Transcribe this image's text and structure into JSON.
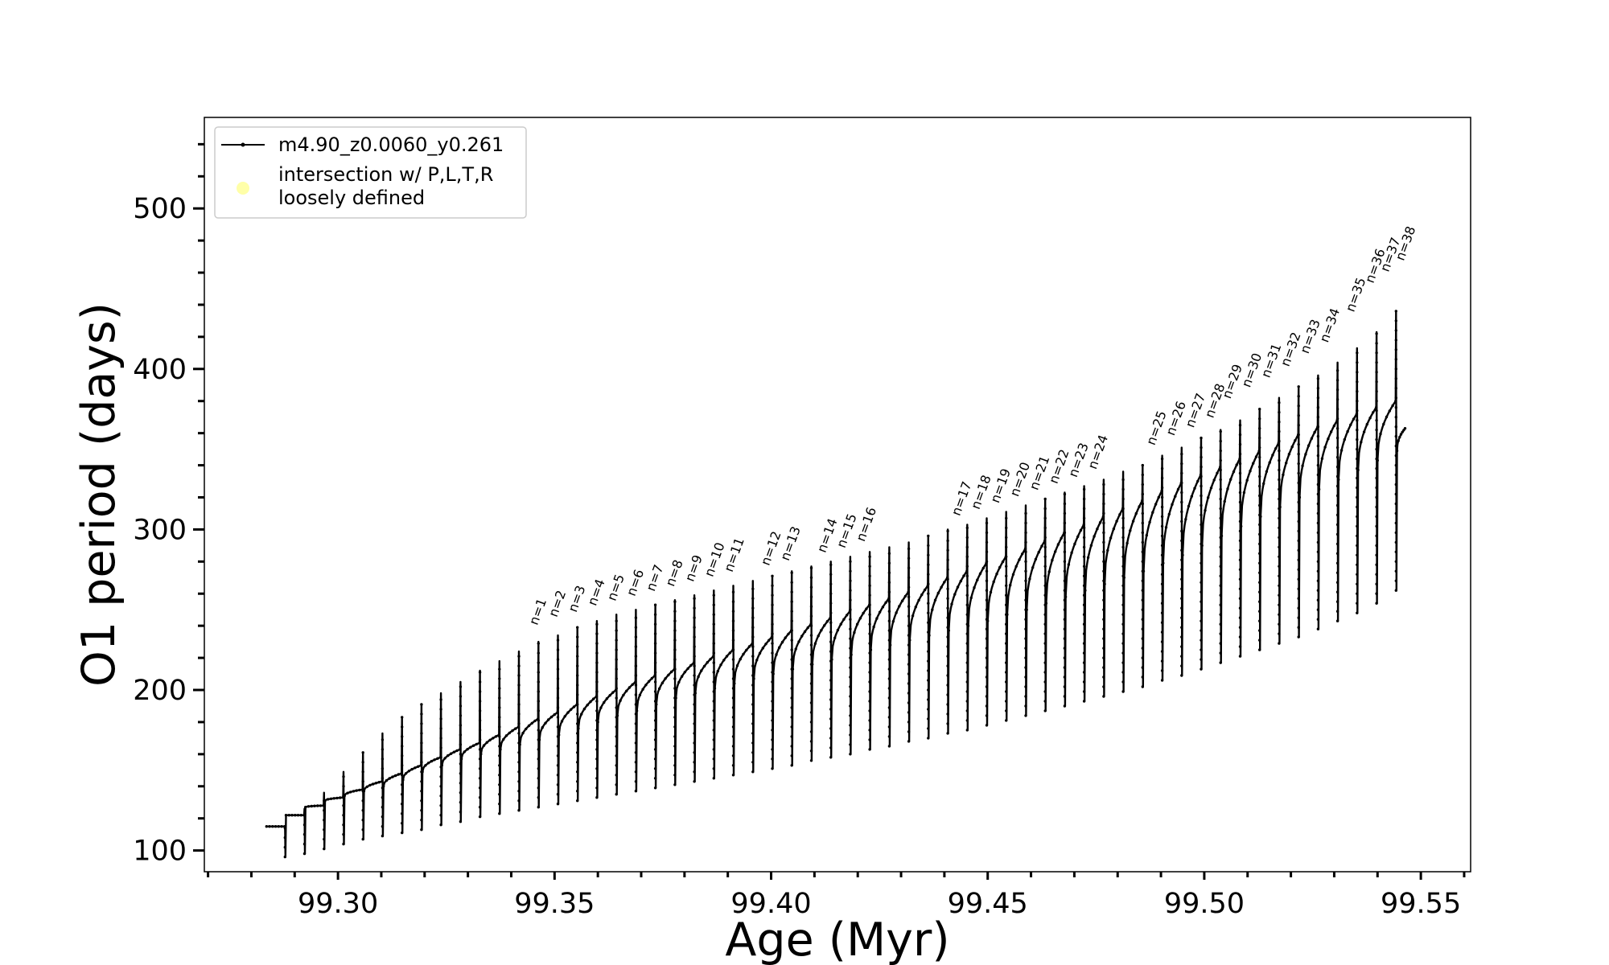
{
  "chart_data": {
    "type": "line",
    "title": "",
    "xlabel": "Age (Myr)",
    "ylabel": "O1 period (days)",
    "xlim": [
      99.27,
      99.56
    ],
    "ylim": [
      85,
      555
    ],
    "xticks": [
      99.3,
      99.35,
      99.4,
      99.45,
      99.5,
      99.55
    ],
    "xtick_labels": [
      "99.30",
      "99.35",
      "99.40",
      "99.45",
      "99.50",
      "99.55"
    ],
    "yticks": [
      100,
      200,
      300,
      400,
      500
    ],
    "ytick_labels": [
      "100",
      "200",
      "300",
      "400",
      "500"
    ],
    "grid": false,
    "legend_position": "top-left",
    "legend": [
      {
        "label": "m4.90_z0.0060_y0.261",
        "color": "#000000",
        "marker": "line-with-dots"
      },
      {
        "label_lines": [
          "intersection w/ P,L,T,R",
          "loosely defined"
        ],
        "color": "#ffffa8",
        "marker": "circle"
      }
    ],
    "series": [
      {
        "name": "m4.90_z0.0060_y0.261",
        "color": "#000000",
        "start_age": 99.2835,
        "end_age": 99.5465,
        "cycle_starts": [
          99.2835,
          99.288,
          99.2925,
          99.297,
          99.3015,
          99.306,
          99.3105,
          99.315,
          99.3195,
          99.324,
          99.3285,
          99.333,
          99.3375,
          99.342,
          99.3465,
          99.351,
          99.3555,
          99.36,
          99.3645,
          99.369,
          99.3735,
          99.378,
          99.3825,
          99.387,
          99.3915,
          99.396,
          99.4005,
          99.405,
          99.4095,
          99.414,
          99.4185,
          99.423,
          99.4275,
          99.432,
          99.4365,
          99.441,
          99.4455,
          99.45,
          99.4545,
          99.459,
          99.4635,
          99.468,
          99.4725,
          99.477,
          99.4815,
          99.486,
          99.4905,
          99.495,
          99.4995,
          99.504,
          99.5085,
          99.513,
          99.5175,
          99.522,
          99.5265,
          99.531,
          99.5355,
          99.54,
          99.5445
        ],
        "baseline": [
          115,
          122,
          127,
          131,
          134,
          137,
          140,
          144,
          149,
          153,
          157,
          160,
          163,
          166,
          169,
          172,
          176,
          180,
          184,
          187,
          191,
          195,
          198,
          201,
          204,
          207,
          210,
          213,
          216,
          219,
          222,
          225,
          228,
          231,
          234,
          237,
          240,
          243,
          247,
          250,
          254,
          258,
          262,
          266,
          270,
          274,
          279,
          284,
          290,
          296,
          302,
          308,
          314,
          320,
          325,
          331,
          337,
          343,
          349
        ],
        "peaks": [
          115,
          122,
          128,
          133,
          138,
          143,
          148,
          153,
          158,
          163,
          167,
          172,
          177,
          182,
          186,
          191,
          196,
          200,
          205,
          209,
          213,
          217,
          221,
          225,
          229,
          233,
          237,
          241,
          245,
          249,
          253,
          257,
          261,
          265,
          270,
          274,
          279,
          283,
          288,
          293,
          298,
          303,
          308,
          313,
          318,
          324,
          329,
          334,
          339,
          344,
          349,
          354,
          359,
          364,
          368,
          372,
          376,
          380,
          363
        ],
        "spikes": [
          115,
          126,
          136,
          149,
          161,
          173,
          183,
          191,
          198,
          205,
          212,
          218,
          224,
          230,
          234,
          239,
          243,
          247,
          250,
          253,
          256,
          259,
          262,
          265,
          268,
          271,
          274,
          277,
          280,
          283,
          286,
          289,
          292,
          296,
          300,
          303,
          307,
          311,
          315,
          319,
          323,
          327,
          331,
          336,
          340,
          346,
          351,
          357,
          362,
          368,
          375,
          382,
          389,
          396,
          404,
          413,
          423,
          436,
          452
        ],
        "dips": [
          96,
          98,
          101,
          104,
          107,
          109,
          111,
          113,
          116,
          118,
          121,
          123,
          125,
          127,
          129,
          131,
          133,
          135,
          137,
          139,
          141,
          143,
          145,
          147,
          149,
          151,
          153,
          156,
          158,
          160,
          163,
          165,
          168,
          170,
          173,
          175,
          178,
          181,
          184,
          187,
          190,
          193,
          196,
          199,
          202,
          206,
          209,
          213,
          217,
          221,
          225,
          229,
          233,
          238,
          243,
          248,
          254,
          262,
          272
        ]
      }
    ],
    "annotations": [
      {
        "text": "n=1",
        "x": 99.346,
        "y": 240
      },
      {
        "text": "n=2",
        "x": 99.3505,
        "y": 245
      },
      {
        "text": "n=3",
        "x": 99.355,
        "y": 248
      },
      {
        "text": "n=4",
        "x": 99.3595,
        "y": 252
      },
      {
        "text": "n=5",
        "x": 99.364,
        "y": 255
      },
      {
        "text": "n=6",
        "x": 99.3685,
        "y": 258
      },
      {
        "text": "n=7",
        "x": 99.373,
        "y": 261
      },
      {
        "text": "n=8",
        "x": 99.3775,
        "y": 264
      },
      {
        "text": "n=9",
        "x": 99.382,
        "y": 267
      },
      {
        "text": "n=10",
        "x": 99.3865,
        "y": 270
      },
      {
        "text": "n=11",
        "x": 99.391,
        "y": 273
      },
      {
        "text": "n=12",
        "x": 99.3995,
        "y": 277
      },
      {
        "text": "n=13",
        "x": 99.404,
        "y": 280
      },
      {
        "text": "n=14",
        "x": 99.4125,
        "y": 285
      },
      {
        "text": "n=15",
        "x": 99.417,
        "y": 288
      },
      {
        "text": "n=16",
        "x": 99.4215,
        "y": 292
      },
      {
        "text": "n=17",
        "x": 99.4435,
        "y": 308
      },
      {
        "text": "n=18",
        "x": 99.448,
        "y": 312
      },
      {
        "text": "n=19",
        "x": 99.4525,
        "y": 316
      },
      {
        "text": "n=20",
        "x": 99.457,
        "y": 320
      },
      {
        "text": "n=21",
        "x": 99.4615,
        "y": 324
      },
      {
        "text": "n=22",
        "x": 99.466,
        "y": 328
      },
      {
        "text": "n=23",
        "x": 99.4705,
        "y": 332
      },
      {
        "text": "n=24",
        "x": 99.475,
        "y": 337
      },
      {
        "text": "n=25",
        "x": 99.4885,
        "y": 352
      },
      {
        "text": "n=26",
        "x": 99.493,
        "y": 358
      },
      {
        "text": "n=27",
        "x": 99.4975,
        "y": 363
      },
      {
        "text": "n=28",
        "x": 99.502,
        "y": 369
      },
      {
        "text": "n=29",
        "x": 99.506,
        "y": 381
      },
      {
        "text": "n=30",
        "x": 99.5105,
        "y": 388
      },
      {
        "text": "n=31",
        "x": 99.515,
        "y": 394
      },
      {
        "text": "n=32",
        "x": 99.5195,
        "y": 401
      },
      {
        "text": "n=33",
        "x": 99.524,
        "y": 409
      },
      {
        "text": "n=34",
        "x": 99.5285,
        "y": 416
      },
      {
        "text": "n=35",
        "x": 99.5345,
        "y": 435
      },
      {
        "text": "n=36",
        "x": 99.539,
        "y": 453
      },
      {
        "text": "n=37",
        "x": 99.5425,
        "y": 460
      },
      {
        "text": "n=38",
        "x": 99.546,
        "y": 467
      }
    ]
  }
}
